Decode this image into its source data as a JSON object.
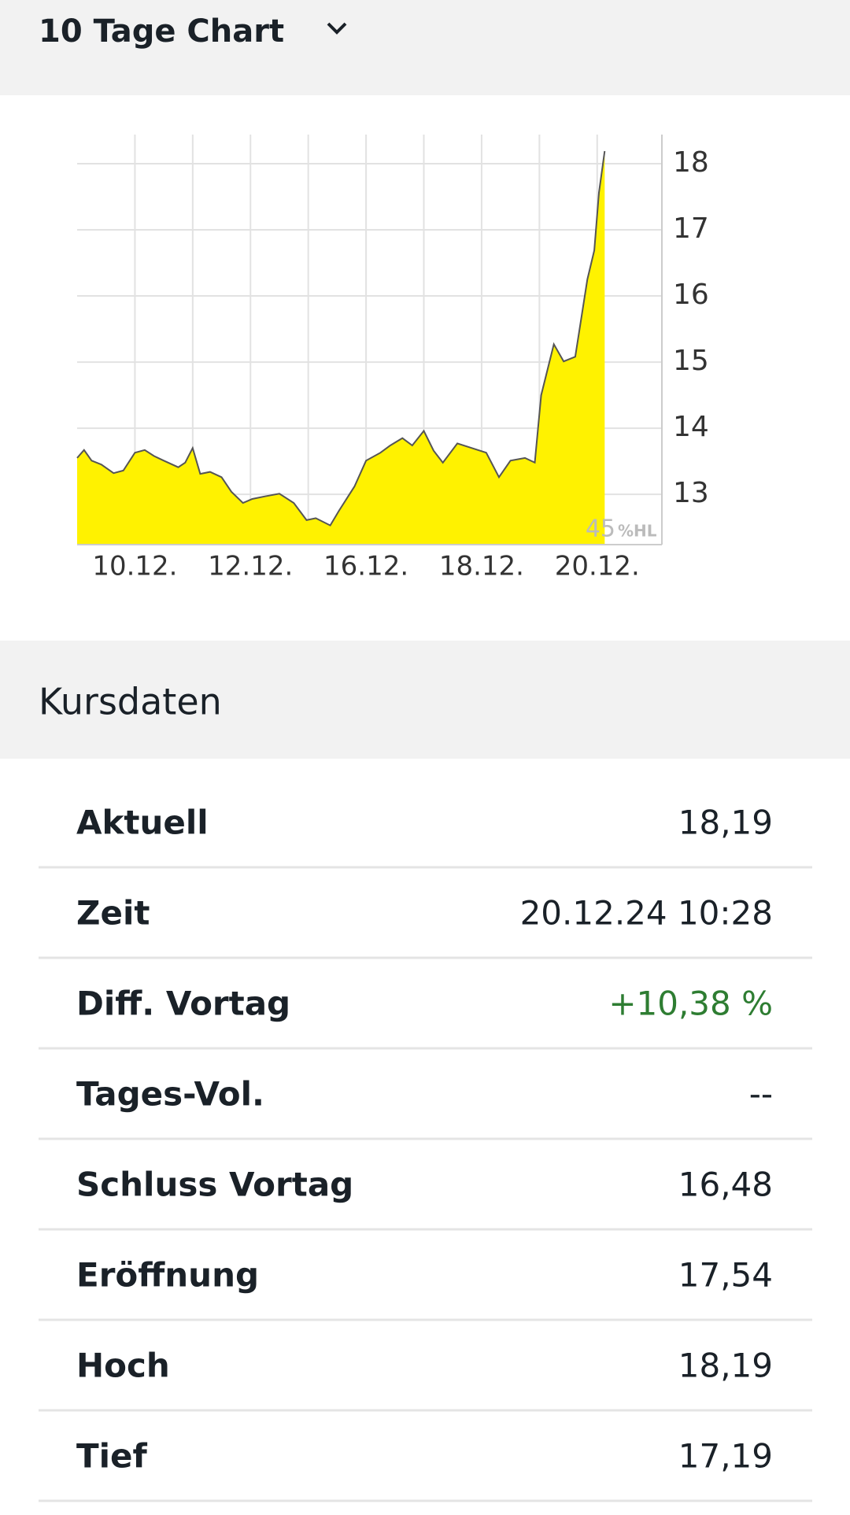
{
  "header": {
    "title": "10 Tage Chart"
  },
  "chart_data": {
    "type": "area",
    "x": [
      0,
      0.12,
      0.25,
      0.42,
      0.63,
      0.8,
      1,
      1.17,
      1.33,
      1.5,
      1.75,
      1.87,
      2,
      2.13,
      2.3,
      2.5,
      2.67,
      2.87,
      3.03,
      3.25,
      3.5,
      3.75,
      3.97,
      4.13,
      4.38,
      4.53,
      4.8,
      5,
      5.25,
      5.42,
      5.63,
      5.8,
      6,
      6.17,
      6.33,
      6.58,
      6.83,
      7.08,
      7.3,
      7.5,
      7.75,
      7.92,
      8.03,
      8.25,
      8.42,
      8.62,
      8.83,
      8.95,
      9.03,
      9.13
    ],
    "values": [
      13.55,
      13.67,
      13.51,
      13.45,
      13.32,
      13.36,
      13.63,
      13.67,
      13.58,
      13.51,
      13.41,
      13.48,
      13.7,
      13.31,
      13.34,
      13.26,
      13.04,
      12.87,
      12.93,
      12.97,
      13.01,
      12.87,
      12.61,
      12.64,
      12.53,
      12.75,
      13.12,
      13.51,
      13.63,
      13.74,
      13.85,
      13.74,
      13.96,
      13.66,
      13.48,
      13.77,
      13.7,
      13.63,
      13.26,
      13.51,
      13.55,
      13.48,
      14.5,
      15.27,
      15.01,
      15.08,
      16.25,
      16.69,
      17.56,
      18.19
    ],
    "color": "#fff200",
    "line_color": "#555555",
    "xlim": [
      0,
      10.12
    ],
    "ylim": [
      12.24,
      18.44
    ],
    "xticks": [
      {
        "value": 1,
        "label": "10.12."
      },
      {
        "value": 3,
        "label": "12.12."
      },
      {
        "value": 5,
        "label": "16.12."
      },
      {
        "value": 7,
        "label": "18.12."
      },
      {
        "value": 9,
        "label": "20.12."
      }
    ],
    "xgrid": [
      1,
      2,
      3,
      4,
      5,
      6,
      7,
      8,
      9
    ],
    "yticks": [
      13,
      14,
      15,
      16,
      17,
      18
    ],
    "grid": true,
    "watermark": "45",
    "watermark_unit": "%HL"
  },
  "table": {
    "title": "Kursdaten",
    "rows": [
      {
        "label": "Aktuell",
        "value": "18,19"
      },
      {
        "label": "Zeit",
        "value": "20.12.24 10:28"
      },
      {
        "label": "Diff. Vortag",
        "value": "+10,38 %",
        "color": "#2e7d32"
      },
      {
        "label": "Tages-Vol.",
        "value": "--"
      },
      {
        "label": "Schluss Vortag",
        "value": "16,48"
      },
      {
        "label": "Eröffnung",
        "value": "17,54"
      },
      {
        "label": "Hoch",
        "value": "18,19"
      },
      {
        "label": "Tief",
        "value": "17,19"
      }
    ]
  }
}
